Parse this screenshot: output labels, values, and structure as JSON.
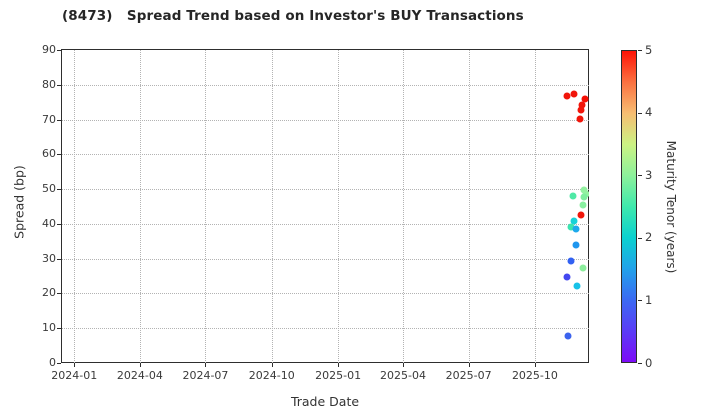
{
  "chart_data": {
    "type": "scatter",
    "title": "(8473)   Spread Trend based on Investor's BUY Transactions",
    "xlabel": "Trade Date",
    "ylabel": "Spread (bp)",
    "ylim": [
      0,
      90
    ],
    "yticks": [
      0,
      10,
      20,
      30,
      40,
      50,
      60,
      70,
      80,
      90
    ],
    "xlim": [
      "2023-12-15",
      "2025-12-15"
    ],
    "xticks": [
      {
        "date": "2024-01-01",
        "label": "2024-01"
      },
      {
        "date": "2024-04-01",
        "label": "2024-04"
      },
      {
        "date": "2024-07-01",
        "label": "2024-07"
      },
      {
        "date": "2024-10-01",
        "label": "2024-10"
      },
      {
        "date": "2025-01-01",
        "label": "2025-01"
      },
      {
        "date": "2025-04-01",
        "label": "2025-04"
      },
      {
        "date": "2025-07-01",
        "label": "2025-07"
      },
      {
        "date": "2025-10-01",
        "label": "2025-10"
      }
    ],
    "grid": true,
    "colorbar": {
      "label": "Maturity Tenor (years)",
      "min": 0,
      "max": 5,
      "ticks": [
        0,
        1,
        2,
        3,
        4,
        5
      ],
      "gradient": [
        {
          "years": 0.0,
          "color": "#7d0bf7"
        },
        {
          "years": 0.5,
          "color": "#5a3cf6"
        },
        {
          "years": 1.0,
          "color": "#3b6af3"
        },
        {
          "years": 1.5,
          "color": "#21a2ea"
        },
        {
          "years": 2.0,
          "color": "#0bd1cf"
        },
        {
          "years": 2.5,
          "color": "#3fe9ac"
        },
        {
          "years": 3.0,
          "color": "#8df19b"
        },
        {
          "years": 3.5,
          "color": "#ccf283"
        },
        {
          "years": 4.0,
          "color": "#f7bd72"
        },
        {
          "years": 4.5,
          "color": "#fb7140"
        },
        {
          "years": 5.0,
          "color": "#fe1406"
        }
      ]
    },
    "points": [
      {
        "date": "2025-11-14",
        "spread": 76.9,
        "maturity_years": 4.9,
        "color": "#f1150a"
      },
      {
        "date": "2025-11-24",
        "spread": 77.4,
        "maturity_years": 4.9,
        "color": "#f1150a"
      },
      {
        "date": "2025-12-09",
        "spread": 75.8,
        "maturity_years": 5.0,
        "color": "#f60f04"
      },
      {
        "date": "2025-12-05",
        "spread": 74.2,
        "maturity_years": 4.9,
        "color": "#f1150a"
      },
      {
        "date": "2025-12-04",
        "spread": 72.8,
        "maturity_years": 4.9,
        "color": "#f1150a"
      },
      {
        "date": "2025-12-02",
        "spread": 70.3,
        "maturity_years": 4.9,
        "color": "#f1150a"
      },
      {
        "date": "2025-12-04",
        "spread": 42.5,
        "maturity_years": 4.9,
        "color": "#f1150a"
      },
      {
        "date": "2025-11-23",
        "spread": 48.0,
        "maturity_years": 2.8,
        "color": "#4fe9a6"
      },
      {
        "date": "2025-12-08",
        "spread": 49.8,
        "maturity_years": 3.1,
        "color": "#93f1a0"
      },
      {
        "date": "2025-12-11",
        "spread": 48.7,
        "maturity_years": 3.1,
        "color": "#93f1a0"
      },
      {
        "date": "2025-12-08",
        "spread": 47.7,
        "maturity_years": 3.0,
        "color": "#7fee9e"
      },
      {
        "date": "2025-12-06",
        "spread": 45.3,
        "maturity_years": 3.05,
        "color": "#89f0a0"
      },
      {
        "date": "2025-12-06",
        "spread": 27.2,
        "maturity_years": 3.05,
        "color": "#8cee9c"
      },
      {
        "date": "2025-11-24",
        "spread": 40.8,
        "maturity_years": 2.25,
        "color": "#16d2d8"
      },
      {
        "date": "2025-11-20",
        "spread": 39.0,
        "maturity_years": 2.6,
        "color": "#3ae4b0"
      },
      {
        "date": "2025-11-27",
        "spread": 38.5,
        "maturity_years": 1.75,
        "color": "#1daaec"
      },
      {
        "date": "2025-11-27",
        "spread": 33.8,
        "maturity_years": 1.6,
        "color": "#1e96ee"
      },
      {
        "date": "2025-11-28",
        "spread": 22.0,
        "maturity_years": 2.0,
        "color": "#17c2e8"
      },
      {
        "date": "2025-11-20",
        "spread": 29.3,
        "maturity_years": 1.05,
        "color": "#3161f2"
      },
      {
        "date": "2025-11-14",
        "spread": 24.8,
        "maturity_years": 0.85,
        "color": "#4348f0"
      },
      {
        "date": "2025-11-16",
        "spread": 7.7,
        "maturity_years": 1.05,
        "color": "#3c63ee"
      }
    ]
  }
}
